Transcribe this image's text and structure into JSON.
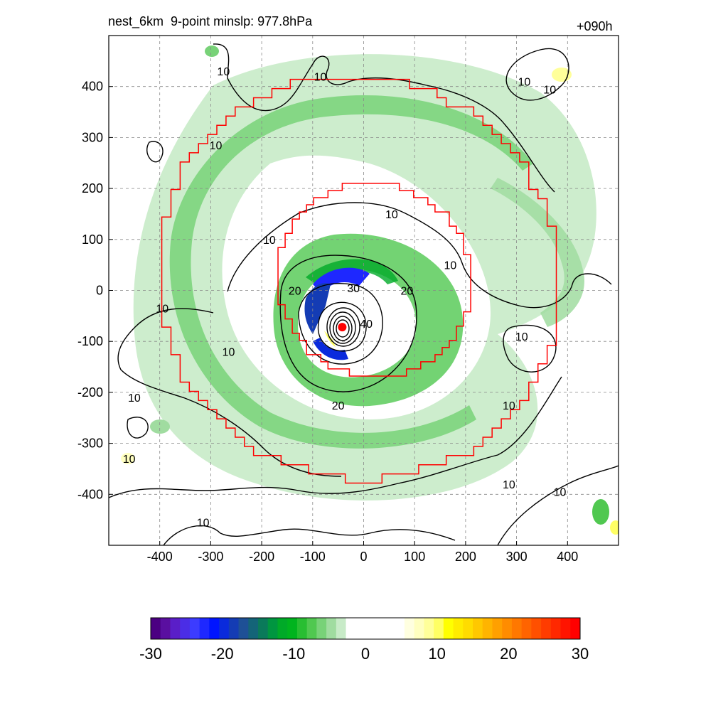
{
  "title_left": "nest_6km  9-point minslp: 977.8hPa",
  "title_right": "+090h",
  "colors": {
    "nest_boundary": "#ff0000",
    "contour": "#000000",
    "center_marker": "#ff0000",
    "grid": "#888888"
  },
  "chart_data": {
    "type": "heatmap",
    "title": "",
    "xlabel": "",
    "ylabel": "",
    "xlim": [
      -500,
      500
    ],
    "ylim": [
      -500,
      500
    ],
    "x_ticks": [
      -400,
      -300,
      -200,
      -100,
      0,
      100,
      200,
      300,
      400
    ],
    "y_ticks": [
      -400,
      -300,
      -200,
      -100,
      0,
      100,
      200,
      300,
      400
    ],
    "grid": true,
    "storm_center": {
      "x": -42,
      "y": -72
    },
    "contour_labels": [
      {
        "text": "10",
        "x": -275,
        "y": 430
      },
      {
        "text": "10",
        "x": -85,
        "y": 420
      },
      {
        "text": "10",
        "x": -290,
        "y": 285
      },
      {
        "text": "10",
        "x": -185,
        "y": 100
      },
      {
        "text": "10",
        "x": 55,
        "y": 150
      },
      {
        "text": "10",
        "x": 170,
        "y": 50
      },
      {
        "text": "10",
        "x": 315,
        "y": 410
      },
      {
        "text": "10",
        "x": 365,
        "y": 395
      },
      {
        "text": "10",
        "x": 310,
        "y": -90
      },
      {
        "text": "10",
        "x": -395,
        "y": -35
      },
      {
        "text": "10",
        "x": -265,
        "y": -120
      },
      {
        "text": "10",
        "x": -450,
        "y": -210
      },
      {
        "text": "10",
        "x": -460,
        "y": -330
      },
      {
        "text": "10",
        "x": 285,
        "y": -225
      },
      {
        "text": "10",
        "x": 285,
        "y": -380
      },
      {
        "text": "10",
        "x": 385,
        "y": -395
      },
      {
        "text": "10",
        "x": -315,
        "y": -455
      },
      {
        "text": "20",
        "x": -135,
        "y": 0
      },
      {
        "text": "20",
        "x": 85,
        "y": 0
      },
      {
        "text": "20",
        "x": -50,
        "y": -225
      },
      {
        "text": "30",
        "x": -20,
        "y": 5
      },
      {
        "text": "40",
        "x": 5,
        "y": -65
      }
    ],
    "colorbar": {
      "min": -30,
      "max": 30,
      "tick_labels": [
        "-30",
        "-20",
        "-10",
        "0",
        "10",
        "20",
        "30"
      ],
      "colors": [
        "#4b0082",
        "#5a0fa0",
        "#5a1ec8",
        "#4b2de6",
        "#3c3cff",
        "#1e28ff",
        "#0014ff",
        "#0a2adc",
        "#143cb4",
        "#1e5096",
        "#146478",
        "#0a7a5a",
        "#009640",
        "#00aa28",
        "#00b41e",
        "#28be32",
        "#50c850",
        "#78d278",
        "#a0dca0",
        "#c8ebc8",
        "#ffffff",
        "#ffffff",
        "#ffffff",
        "#ffffff",
        "#ffffff",
        "#ffffff",
        "#ffffe0",
        "#ffffc0",
        "#ffff9a",
        "#ffff64",
        "#ffff00",
        "#ffec00",
        "#ffdc00",
        "#ffc800",
        "#ffb400",
        "#ffa000",
        "#ff8c00",
        "#ff7800",
        "#ff6400",
        "#ff5000",
        "#ff3c00",
        "#ff2800",
        "#ff1400",
        "#ff0000"
      ]
    }
  }
}
